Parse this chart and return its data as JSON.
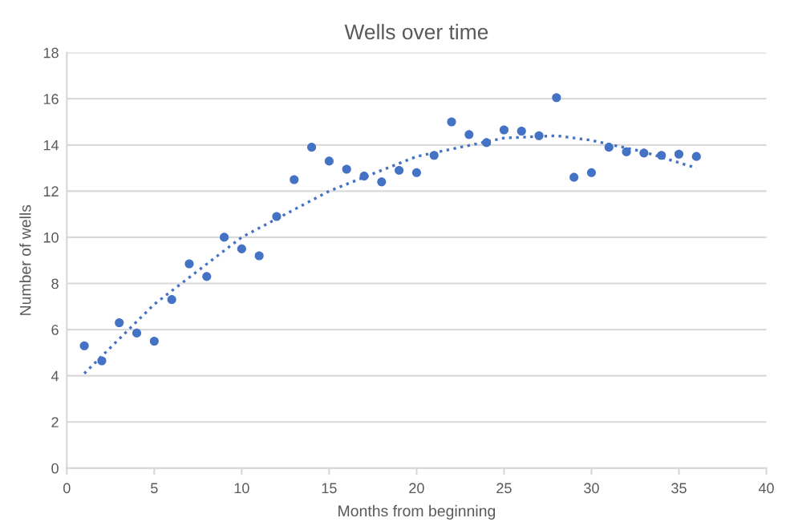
{
  "chart_data": {
    "type": "scatter",
    "title": "Wells over time",
    "xlabel": "Months from beginning",
    "ylabel": "Number of wells",
    "series": [
      {
        "color": "#4472c4",
        "marker": "circle",
        "x": [
          1,
          2,
          3,
          4,
          5,
          6,
          7,
          8,
          9,
          10,
          11,
          12,
          13,
          14,
          15,
          16,
          17,
          18,
          19,
          20,
          21,
          22,
          23,
          24,
          25,
          26,
          27,
          28,
          29,
          30,
          31,
          32,
          33,
          34,
          35,
          36
        ],
        "values": [
          5.3,
          4.65,
          6.3,
          5.85,
          5.5,
          7.3,
          8.85,
          8.3,
          10.0,
          9.5,
          9.2,
          10.9,
          12.5,
          13.9,
          13.3,
          12.95,
          12.65,
          12.4,
          12.9,
          12.8,
          13.55,
          15.0,
          14.45,
          14.1,
          14.65,
          14.6,
          14.4,
          16.05,
          12.6,
          12.8,
          13.9,
          13.7,
          13.65,
          13.55,
          13.6,
          13.5
        ]
      },
      {
        "type": "line",
        "color": "#4472c4",
        "line_style": "dotted",
        "x": [
          1,
          5,
          10,
          15,
          20,
          25,
          28,
          30,
          33,
          36
        ],
        "values": [
          4.1,
          7.1,
          10.0,
          12.0,
          13.5,
          14.3,
          14.4,
          14.2,
          13.7,
          13.0
        ]
      }
    ],
    "xlim": [
      0,
      40
    ],
    "xticks": [
      0,
      5,
      10,
      15,
      20,
      25,
      30,
      35,
      40
    ],
    "ylim": [
      0,
      18
    ],
    "yticks": [
      0,
      2,
      4,
      6,
      8,
      10,
      12,
      14,
      16,
      18
    ],
    "grid": "y"
  }
}
